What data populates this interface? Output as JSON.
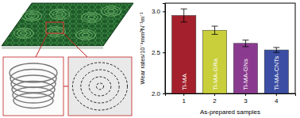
{
  "chart_data": {
    "type": "bar",
    "y_label": "Wear rates/10⁻⁴mm³N⁻¹m⁻¹",
    "x_label": "As-prepared samples",
    "categories": [
      "1",
      "2",
      "3",
      "4"
    ],
    "bar_labels": [
      "Ti-MA",
      "Ti-MA-GRa",
      "Ti-MA-GNs",
      "Ti-MA-CNTs"
    ],
    "values": [
      2.95,
      2.77,
      2.61,
      2.53
    ],
    "errors": [
      0.08,
      0.05,
      0.04,
      0.03
    ],
    "colors": [
      "#a3202c",
      "#c9cf3a",
      "#8b3b8f",
      "#3b4ea3"
    ],
    "ylim": [
      2.0,
      3.1
    ],
    "yticks": [
      {
        "value": 2.0,
        "label": "2.0"
      },
      {
        "value": 2.5,
        "label": "2.5"
      },
      {
        "value": 3.0,
        "label": "3.0"
      }
    ]
  }
}
